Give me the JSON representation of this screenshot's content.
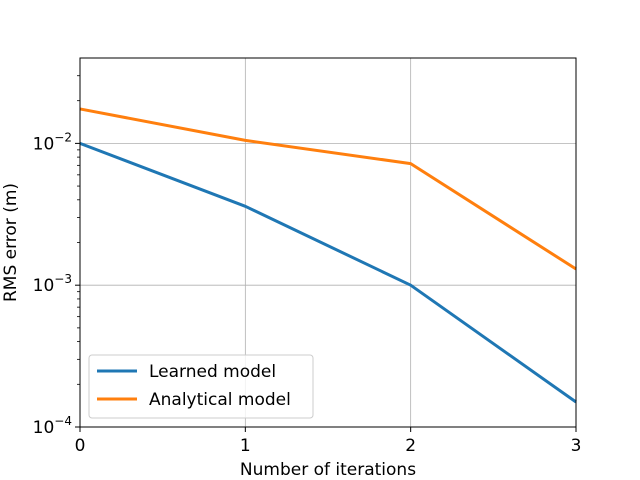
{
  "chart_data": {
    "type": "line",
    "xlabel": "Number of iterations",
    "ylabel": "RMS error (m)",
    "x": [
      0,
      1,
      2,
      3
    ],
    "xlim": [
      0,
      3
    ],
    "x_ticks": [
      "0",
      "1",
      "2",
      "3"
    ],
    "yscale": "log",
    "ylim": [
      0.0001,
      0.04
    ],
    "y_ticks": [
      {
        "value": 0.0001,
        "base": "10",
        "exp": "−4"
      },
      {
        "value": 0.001,
        "base": "10",
        "exp": "−3"
      },
      {
        "value": 0.01,
        "base": "10",
        "exp": "−2"
      }
    ],
    "grid": true,
    "legend_position": "lower-left",
    "series": [
      {
        "name": "Learned model",
        "color": "#1f77b4",
        "values": [
          0.01,
          0.0036,
          0.001,
          0.00015
        ]
      },
      {
        "name": "Analytical model",
        "color": "#ff7f0e",
        "values": [
          0.0175,
          0.0105,
          0.0072,
          0.0013
        ]
      }
    ]
  }
}
